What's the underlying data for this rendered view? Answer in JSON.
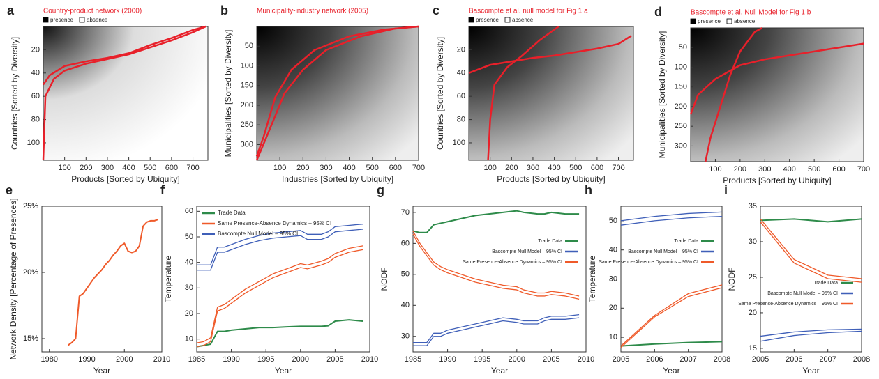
{
  "chart_data": [
    {
      "type": "heatmap",
      "label": "a",
      "title": "Country-product network (2000)",
      "legend": [
        "presence",
        "absence"
      ],
      "xlabel": "Products [Sorted by Ubiquity]",
      "ylabel": "Countries [Sorted by Diversity]",
      "xlim": [
        0,
        770
      ],
      "xticks": [
        100,
        200,
        300,
        400,
        500,
        600,
        700
      ],
      "ylim": [
        115,
        0
      ],
      "yticks": [
        20,
        40,
        60,
        80,
        100
      ],
      "density": "low",
      "series": [
        {
          "color": "#e8202a",
          "x": [
            0,
            10,
            50,
            100,
            200,
            300,
            400,
            500,
            600,
            700,
            760
          ],
          "values": [
            115,
            60,
            45,
            38,
            32,
            28,
            24,
            18,
            12,
            5,
            0
          ]
        },
        {
          "color": "#e8202a",
          "x": [
            0,
            30,
            100,
            200,
            300,
            400,
            500,
            600,
            700,
            760
          ],
          "values": [
            50,
            42,
            34,
            30,
            27,
            23,
            16,
            10,
            3,
            0
          ]
        }
      ]
    },
    {
      "type": "heatmap",
      "label": "b",
      "title": "Municipality-industry network (2005)",
      "xlabel": "Industries [Sorted by Ubiquity]",
      "ylabel": "Municipalities [Sorted by Diversity]",
      "xlim": [
        0,
        700
      ],
      "xticks": [
        100,
        200,
        300,
        400,
        500,
        600,
        700
      ],
      "ylim": [
        340,
        0
      ],
      "yticks": [
        50,
        100,
        150,
        200,
        250,
        300
      ],
      "density": "high",
      "series": [
        {
          "color": "#e8202a",
          "x": [
            0,
            30,
            80,
            150,
            250,
            400,
            550,
            700
          ],
          "values": [
            330,
            280,
            180,
            110,
            60,
            25,
            8,
            0
          ]
        },
        {
          "color": "#e8202a",
          "x": [
            0,
            50,
            120,
            200,
            300,
            450,
            600,
            700
          ],
          "values": [
            340,
            270,
            170,
            110,
            60,
            25,
            5,
            0
          ]
        }
      ]
    },
    {
      "type": "heatmap",
      "label": "c",
      "title": "Bascompte et al. null model for Fig 1 a",
      "legend": [
        "presence",
        "absence"
      ],
      "xlabel": "Products [Sorted by Ubiquity]",
      "ylabel": "Countries [Sorted by Diversity]",
      "xlim": [
        0,
        770
      ],
      "xticks": [
        100,
        200,
        300,
        400,
        500,
        600,
        700
      ],
      "ylim": [
        115,
        0
      ],
      "yticks": [
        20,
        40,
        60,
        80,
        100
      ],
      "density": "high",
      "series": [
        {
          "color": "#e8202a",
          "x": [
            0,
            100,
            200,
            300,
            400,
            500,
            600,
            700,
            760
          ],
          "values": [
            40,
            33,
            30,
            27,
            25,
            22,
            19,
            15,
            8
          ]
        },
        {
          "color": "#e8202a",
          "x": [
            90,
            100,
            120,
            180,
            250,
            330,
            420
          ],
          "values": [
            115,
            80,
            50,
            35,
            25,
            12,
            0
          ]
        }
      ]
    },
    {
      "type": "heatmap",
      "label": "d",
      "title": "Bascompte et al. Null Model for Fig 1 b",
      "legend": [
        "presence",
        "absence"
      ],
      "xlabel": "Products [Sorted by Ubiquity]",
      "ylabel": "Municipalities [Sorted by Diversity]",
      "xlim": [
        0,
        700
      ],
      "xticks": [
        100,
        200,
        300,
        400,
        500,
        600,
        700
      ],
      "ylim": [
        340,
        0
      ],
      "yticks": [
        50,
        100,
        150,
        200,
        250,
        300
      ],
      "density": "high",
      "series": [
        {
          "color": "#e8202a",
          "x": [
            0,
            30,
            100,
            200,
            300,
            400,
            500,
            600,
            700
          ],
          "values": [
            220,
            170,
            130,
            95,
            80,
            70,
            60,
            50,
            40
          ]
        },
        {
          "color": "#e8202a",
          "x": [
            60,
            80,
            120,
            160,
            200,
            260,
            290
          ],
          "values": [
            340,
            280,
            200,
            120,
            60,
            10,
            0
          ]
        }
      ]
    },
    {
      "type": "line",
      "label": "e",
      "xlabel": "Year",
      "ylabel": "Network Density [Percentage of Presences]",
      "xlim": [
        1978,
        2010
      ],
      "xticks": [
        1980,
        1990,
        2000,
        2010
      ],
      "ylim": [
        14,
        25
      ],
      "yticks": [
        {
          "value": 15,
          "label": "15%"
        },
        {
          "value": 20,
          "label": "20%"
        },
        {
          "value": 25,
          "label": "25%"
        }
      ],
      "color": "#ef5a2a",
      "x": [
        1985,
        1986,
        1987,
        1988,
        1989,
        1990,
        1991,
        1992,
        1993,
        1994,
        1995,
        1996,
        1997,
        1998,
        1999,
        2000,
        2001,
        2002,
        2003,
        2004,
        2005,
        2006,
        2007,
        2008,
        2009
      ],
      "values": [
        14.5,
        14.7,
        15,
        18.2,
        18.4,
        18.8,
        19.2,
        19.6,
        19.9,
        20.2,
        20.6,
        20.9,
        21.3,
        21.6,
        22,
        22.2,
        21.6,
        21.5,
        21.6,
        22,
        23.5,
        23.8,
        23.9,
        23.9,
        24
      ]
    },
    {
      "type": "line",
      "label": "f",
      "xlabel": "Year",
      "ylabel": "Temperature",
      "legend_position": "top-left",
      "xlim": [
        1985,
        2010
      ],
      "xticks": [
        1985,
        1990,
        1995,
        2000,
        2005,
        2010
      ],
      "ylim": [
        5,
        62
      ],
      "yticks": [
        10,
        20,
        30,
        40,
        50,
        60
      ],
      "x": [
        1985,
        1986,
        1987,
        1988,
        1989,
        1990,
        1992,
        1994,
        1996,
        1998,
        2000,
        2001,
        2003,
        2004,
        2005,
        2007,
        2009
      ],
      "series": [
        {
          "name": "Trade Data",
          "color": "#2e8b4a",
          "values": [
            7,
            7.5,
            8,
            13,
            13,
            13.5,
            14,
            14.5,
            14.5,
            14.8,
            15,
            15,
            15,
            15.2,
            17,
            17.5,
            17
          ]
        },
        {
          "name": "Same Presence-Absence Dynamics – 95% CI",
          "color": "#ef5a2a",
          "lower": [
            7,
            7.5,
            9,
            21,
            22,
            24,
            28,
            31,
            34,
            36,
            38,
            37.5,
            39,
            40,
            42,
            44,
            45
          ],
          "upper": [
            8.5,
            9,
            10.5,
            22.5,
            23.5,
            25.5,
            29.5,
            32.5,
            35.5,
            37.5,
            39.5,
            39,
            40.5,
            41.5,
            43.5,
            45.5,
            46.5
          ]
        },
        {
          "name": "Bascompte Null Model – 95% CI",
          "color": "#3f5fb8",
          "lower": [
            37,
            37,
            37,
            44,
            44,
            45,
            47,
            48.5,
            49.5,
            50,
            50.5,
            49,
            49,
            50,
            52,
            52.5,
            53
          ],
          "upper": [
            39,
            39,
            39,
            46,
            46,
            47,
            49,
            50.5,
            51.5,
            52,
            52.5,
            51,
            51,
            52,
            54,
            54.5,
            55
          ]
        }
      ]
    },
    {
      "type": "line",
      "label": "g",
      "xlabel": "Year",
      "ylabel": "NODF",
      "legend_position": "center-right",
      "xlim": [
        1985,
        2010
      ],
      "xticks": [
        1985,
        1990,
        1995,
        2000,
        2005,
        2010
      ],
      "ylim": [
        25,
        72
      ],
      "yticks": [
        30,
        40,
        50,
        60,
        70
      ],
      "x": [
        1985,
        1986,
        1987,
        1988,
        1989,
        1990,
        1992,
        1994,
        1996,
        1998,
        2000,
        2001,
        2003,
        2004,
        2005,
        2007,
        2009
      ],
      "series": [
        {
          "name": "Trade Data",
          "color": "#2e8b4a",
          "values": [
            64,
            63.5,
            63.5,
            66,
            66.5,
            67,
            68,
            69,
            69.5,
            70,
            70.5,
            70,
            69.5,
            69.5,
            70,
            69.5,
            69.5
          ]
        },
        {
          "name": "Bascompte Null Model – 95% CI",
          "color": "#3f5fb8",
          "lower": [
            27,
            27,
            27,
            30,
            30,
            31,
            32,
            33,
            34,
            35,
            34.5,
            34,
            34,
            35,
            35.5,
            35.5,
            36
          ],
          "upper": [
            28,
            28,
            28,
            31,
            31,
            32,
            33,
            34,
            35,
            36,
            35.5,
            35,
            35,
            36,
            36.5,
            36.5,
            37
          ]
        },
        {
          "name": "Same Presence-Absence Dynamics – 95% CI",
          "color": "#ef5a2a",
          "lower": [
            63,
            59,
            56,
            53,
            51.5,
            50.5,
            49,
            47.5,
            46.5,
            45.5,
            45,
            44,
            43,
            43,
            43.5,
            43,
            42
          ],
          "upper": [
            64,
            60,
            57,
            54,
            52.5,
            51.5,
            50,
            48.5,
            47.5,
            46.5,
            46,
            45,
            44,
            44,
            44.5,
            44,
            43
          ]
        }
      ]
    },
    {
      "type": "line",
      "label": "h",
      "xlabel": "Year",
      "ylabel": "Temperature",
      "legend_position": "upper-right",
      "xlim": [
        2005,
        2008
      ],
      "xticks": [
        2005,
        2006,
        2007,
        2008
      ],
      "ylim": [
        5,
        55
      ],
      "yticks": [
        10,
        20,
        30,
        40,
        50
      ],
      "x": [
        2005,
        2006,
        2007,
        2008
      ],
      "series": [
        {
          "name": "Trade Data",
          "color": "#2e8b4a",
          "values": [
            7,
            7.7,
            8.2,
            8.5
          ]
        },
        {
          "name": "Bascompte Null Model – 95% CI",
          "color": "#3f5fb8",
          "lower": [
            48.5,
            50,
            51,
            51.5
          ],
          "upper": [
            50,
            51.5,
            52.5,
            53
          ]
        },
        {
          "name": "Same Presence-Absence Dynamics – 95% CI",
          "color": "#ef5a2a",
          "lower": [
            6.5,
            17,
            24,
            27
          ],
          "upper": [
            7,
            17.5,
            25,
            28
          ]
        }
      ]
    },
    {
      "type": "line",
      "label": "i",
      "xlabel": "Year",
      "ylabel": "NODF",
      "legend_position": "lower-right",
      "xlim": [
        2005,
        2008
      ],
      "xticks": [
        2005,
        2006,
        2007,
        2008
      ],
      "ylim": [
        14.5,
        35
      ],
      "yticks": [
        15,
        20,
        25,
        30,
        35
      ],
      "x": [
        2005,
        2006,
        2007,
        2008
      ],
      "series": [
        {
          "name": "Trade Data",
          "color": "#2e8b4a",
          "values": [
            33,
            33.2,
            32.8,
            33.2
          ]
        },
        {
          "name": "Bascompte Null Model – 95% CI",
          "color": "#3f5fb8",
          "lower": [
            16,
            16.8,
            17.2,
            17.4
          ],
          "upper": [
            16.7,
            17.3,
            17.6,
            17.7
          ]
        },
        {
          "name": "Same Presence-Absence Dynamics – 95% CI",
          "color": "#ef5a2a",
          "lower": [
            32.8,
            27,
            24.8,
            24.3
          ],
          "upper": [
            33.2,
            27.5,
            25.3,
            24.8
          ]
        }
      ]
    }
  ]
}
